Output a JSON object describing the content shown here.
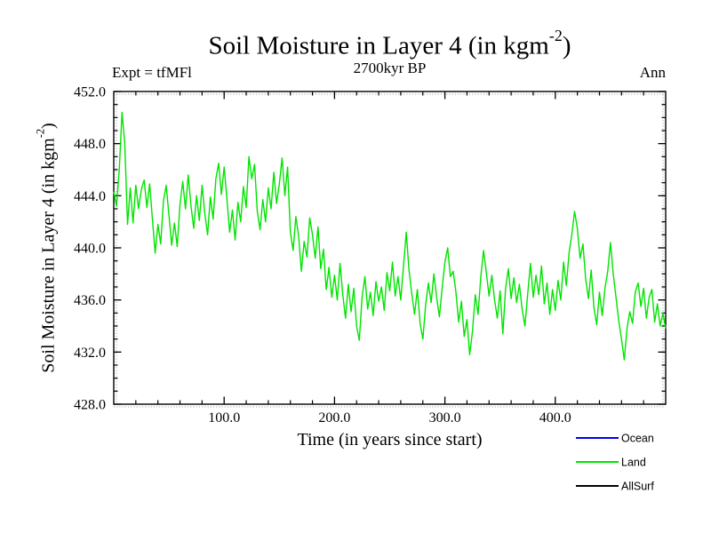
{
  "header": {
    "title_prefix": "Soil Moisture in Layer 4 (in kgm",
    "title_sup": "-2",
    "title_suffix": ")",
    "subtitle": "2700kyr BP",
    "experiment_label": "Expt = tfMFl",
    "meaning_label": "Ann"
  },
  "axes": {
    "xlabel": "Time (in years since start)",
    "ylabel_prefix": "Soil Moisture in Layer 4 (in kgm",
    "ylabel_sup": "-2",
    "ylabel_suffix": ")"
  },
  "chart_data": {
    "type": "line",
    "title": "Soil Moisture in Layer 4 (in kgm^-2)",
    "subtitle": "2700kyr BP",
    "annotations": {
      "experiment": "Expt = tfMFl",
      "meaning": "Ann"
    },
    "xlabel": "Time (in years since start)",
    "ylabel": "Soil Moisture in Layer 4 (in kgm^-2)",
    "xlim": [
      0,
      500
    ],
    "ylim": [
      428,
      452
    ],
    "grid": false,
    "x_major_ticks": [
      100,
      200,
      300,
      400
    ],
    "x_major_tick_labels": [
      "100.0",
      "200.0",
      "300.0",
      "400.0"
    ],
    "x_minor_step": 20,
    "y_major_ticks": [
      428,
      432,
      436,
      440,
      444,
      448,
      452
    ],
    "y_major_tick_labels": [
      "428.0",
      "432.0",
      "436.0",
      "440.0",
      "444.0",
      "448.0",
      "452.0"
    ],
    "y_minor_step": 1,
    "legend_position": "below-right",
    "legend": [
      {
        "label": "Ocean",
        "color": "#0000ee"
      },
      {
        "label": "Land",
        "color": "#00e400"
      },
      {
        "label": "AllSurf",
        "color": "#000000"
      }
    ],
    "series": [
      {
        "name": "Land",
        "color": "#00e400",
        "x_start": 0,
        "x_step": 2.5,
        "values": [
          444.3,
          443.2,
          446.0,
          450.4,
          448.0,
          441.8,
          444.6,
          441.9,
          444.8,
          443.0,
          444.5,
          445.2,
          443.1,
          444.9,
          442.2,
          439.6,
          441.8,
          440.3,
          443.6,
          444.8,
          442.5,
          440.2,
          441.9,
          440.1,
          443.3,
          445.1,
          443.0,
          445.6,
          443.2,
          441.5,
          444.0,
          442.1,
          444.8,
          442.6,
          441.0,
          443.9,
          442.2,
          445.3,
          446.5,
          444.1,
          446.2,
          443.8,
          441.2,
          442.9,
          440.6,
          443.5,
          442.0,
          444.7,
          443.1,
          447.0,
          445.3,
          446.4,
          442.8,
          441.4,
          443.7,
          442.0,
          444.6,
          443.0,
          445.8,
          443.4,
          444.9,
          446.9,
          444.0,
          446.2,
          441.2,
          439.8,
          442.4,
          440.9,
          438.2,
          440.5,
          439.3,
          442.3,
          441.0,
          439.2,
          441.6,
          438.4,
          439.9,
          436.8,
          438.5,
          436.2,
          437.9,
          436.0,
          438.8,
          436.4,
          434.6,
          437.2,
          435.1,
          436.9,
          434.0,
          432.9,
          436.2,
          437.8,
          435.3,
          436.6,
          434.8,
          437.4,
          435.9,
          437.0,
          435.2,
          438.1,
          436.7,
          438.9,
          436.3,
          437.8,
          436.0,
          438.6,
          441.2,
          438.3,
          436.5,
          434.9,
          436.8,
          434.2,
          433.0,
          435.6,
          437.3,
          435.8,
          438.0,
          436.2,
          434.7,
          436.9,
          438.9,
          440.0,
          437.8,
          438.2,
          436.6,
          434.3,
          435.9,
          433.2,
          434.5,
          431.8,
          433.6,
          436.4,
          434.9,
          437.8,
          439.8,
          438.1,
          436.3,
          437.9,
          436.0,
          434.6,
          436.7,
          433.4,
          436.9,
          438.4,
          436.1,
          437.7,
          435.8,
          437.2,
          435.3,
          434.0,
          436.5,
          438.8,
          436.2,
          437.9,
          436.4,
          438.6,
          435.7,
          437.3,
          434.9,
          436.8,
          435.2,
          437.5,
          436.0,
          438.9,
          437.1,
          439.6,
          441.0,
          442.8,
          441.5,
          439.2,
          440.3,
          437.6,
          436.1,
          438.3,
          435.4,
          434.1,
          436.6,
          434.8,
          436.9,
          438.2,
          440.4,
          438.0,
          436.2,
          434.4,
          433.0,
          431.4,
          433.8,
          435.1,
          434.2,
          436.6,
          437.3,
          435.5,
          436.9,
          434.6,
          436.2,
          436.8,
          434.3,
          435.7,
          434.0,
          435.0,
          433.8
        ]
      }
    ]
  }
}
